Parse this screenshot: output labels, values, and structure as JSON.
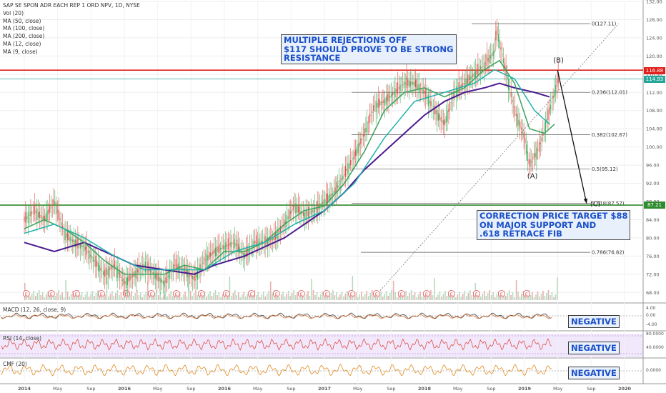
{
  "legend": {
    "title": "SAP SE SPON ADR EACH REP 1 ORD NPV, 1D, NYSE",
    "studies": [
      "Vol (20)",
      "MA (50, close)",
      "MA (100, close)",
      "MA (200, close)",
      "MA (12, close)",
      "MA (9, close)"
    ]
  },
  "annotations": {
    "resistance_note": [
      "MULTIPLE REJECTIONS OFF",
      "$117 SHOULD PROVE TO BE STRONG",
      "RESISTANCE"
    ],
    "target_note": [
      "CORRECTION PRICE TARGET $88",
      "ON MAJOR SUPPORT AND",
      ".618 RETRACE FIB"
    ],
    "wave_a": "(A)",
    "wave_b": "(B)",
    "wave_c": "(C)",
    "negative_label": "NEGATIVE"
  },
  "panes": {
    "macd_label": "MACD (12, 26, close, 9)",
    "rsi_label": "RSI (14, close)",
    "cmf_label": "CMF (20)"
  },
  "price_tags": {
    "resistance": "116.88",
    "last": "114.93",
    "support": "87.21"
  },
  "colors": {
    "resistance_line": "#e0201c",
    "support_line": "#2e8b2e",
    "last_price": "#26a69a",
    "ma_200": "#4b1a8f",
    "ma_50": "#3aa35a",
    "ma_100": "#20b2aa",
    "up_candle": "#3fae5c",
    "down_candle": "#e0504a",
    "note_text": "#1a4fc9"
  },
  "chart_data": {
    "type": "line",
    "title": "SAP SE SPON ADR EACH REP 1 ORD NPV, 1D, NYSE",
    "x_axis_labels": [
      "2014",
      "May",
      "Sep",
      "2016",
      "May",
      "Sep",
      "2016",
      "May",
      "Sep",
      "2017",
      "May",
      "Sep",
      "2018",
      "May",
      "Sep",
      "2019",
      "May",
      "Sep",
      "2020"
    ],
    "y_axis_labels": [
      "132.00",
      "128.00",
      "124.00",
      "120.00",
      "116.00",
      "112.00",
      "108.00",
      "104.00",
      "100.00",
      "96.00",
      "92.00",
      "88.00",
      "84.00",
      "80.00",
      "76.00",
      "72.00",
      "68.00"
    ],
    "ylim": [
      66,
      132
    ],
    "x_years": [
      2014,
      2020
    ],
    "horizontal_levels": [
      {
        "name": "resistance",
        "value": 116.88
      },
      {
        "name": "last price",
        "value": 114.93
      },
      {
        "name": "support",
        "value": 87.21
      }
    ],
    "fib_levels": [
      {
        "label": "0(127.11)",
        "value": 127.11
      },
      {
        "label": "0.236(112.01)",
        "value": 112.01
      },
      {
        "label": "0.382(102.67)",
        "value": 102.67
      },
      {
        "label": "0.5(95.12)",
        "value": 95.12
      },
      {
        "label": "0.618(87.57)",
        "value": 87.57
      },
      {
        "label": "0.786(76.82)",
        "value": 76.82
      }
    ],
    "price_series": {
      "name": "close",
      "points": [
        [
          2014.0,
          84
        ],
        [
          2014.1,
          86
        ],
        [
          2014.2,
          84
        ],
        [
          2014.3,
          88
        ],
        [
          2014.4,
          81
        ],
        [
          2014.5,
          79
        ],
        [
          2014.6,
          78
        ],
        [
          2014.7,
          75
        ],
        [
          2014.8,
          72
        ],
        [
          2014.9,
          74
        ],
        [
          2015.0,
          70
        ],
        [
          2015.1,
          72
        ],
        [
          2015.2,
          74
        ],
        [
          2015.3,
          72
        ],
        [
          2015.4,
          70
        ],
        [
          2015.5,
          74
        ],
        [
          2015.6,
          73
        ],
        [
          2015.7,
          71
        ],
        [
          2015.8,
          75
        ],
        [
          2015.9,
          77
        ],
        [
          2016.0,
          78
        ],
        [
          2016.1,
          79
        ],
        [
          2016.2,
          76
        ],
        [
          2016.3,
          79
        ],
        [
          2016.4,
          79
        ],
        [
          2016.5,
          80
        ],
        [
          2016.6,
          83
        ],
        [
          2016.7,
          87
        ],
        [
          2016.8,
          85
        ],
        [
          2016.9,
          86
        ],
        [
          2017.0,
          88
        ],
        [
          2017.1,
          90
        ],
        [
          2017.2,
          94
        ],
        [
          2017.3,
          98
        ],
        [
          2017.4,
          103
        ],
        [
          2017.5,
          109
        ],
        [
          2017.6,
          110
        ],
        [
          2017.7,
          112
        ],
        [
          2017.8,
          114
        ],
        [
          2017.9,
          114
        ],
        [
          2018.0,
          112
        ],
        [
          2018.1,
          108
        ],
        [
          2018.2,
          105
        ],
        [
          2018.3,
          112
        ],
        [
          2018.4,
          114
        ],
        [
          2018.5,
          116
        ],
        [
          2018.6,
          118
        ],
        [
          2018.7,
          121
        ],
        [
          2018.72,
          126
        ],
        [
          2018.8,
          118
        ],
        [
          2018.9,
          108
        ],
        [
          2019.0,
          102
        ],
        [
          2019.05,
          96
        ],
        [
          2019.15,
          100
        ],
        [
          2019.2,
          104
        ],
        [
          2019.3,
          112
        ],
        [
          2019.35,
          116
        ]
      ]
    },
    "series": [
      {
        "name": "MA (200, close)",
        "points": [
          [
            2014.0,
            79
          ],
          [
            2014.3,
            77
          ],
          [
            2014.6,
            79
          ],
          [
            2014.9,
            76
          ],
          [
            2015.1,
            74
          ],
          [
            2015.4,
            73
          ],
          [
            2015.7,
            72
          ],
          [
            2015.9,
            74
          ],
          [
            2016.2,
            76
          ],
          [
            2016.4,
            78
          ],
          [
            2016.6,
            80
          ],
          [
            2016.8,
            83
          ],
          [
            2017.0,
            86
          ],
          [
            2017.2,
            90
          ],
          [
            2017.4,
            95
          ],
          [
            2017.6,
            99
          ],
          [
            2017.8,
            103
          ],
          [
            2018.0,
            107
          ],
          [
            2018.2,
            110
          ],
          [
            2018.4,
            112
          ],
          [
            2018.6,
            113
          ],
          [
            2018.75,
            114
          ],
          [
            2018.9,
            113
          ],
          [
            2019.1,
            112
          ],
          [
            2019.25,
            111
          ]
        ]
      },
      {
        "name": "MA (50, close)",
        "points": [
          [
            2014.0,
            82
          ],
          [
            2014.2,
            84
          ],
          [
            2014.4,
            82
          ],
          [
            2014.6,
            79
          ],
          [
            2014.8,
            75
          ],
          [
            2015.0,
            72
          ],
          [
            2015.2,
            72
          ],
          [
            2015.4,
            72
          ],
          [
            2015.6,
            74
          ],
          [
            2015.8,
            73
          ],
          [
            2016.0,
            77
          ],
          [
            2016.2,
            77
          ],
          [
            2016.4,
            79
          ],
          [
            2016.6,
            83
          ],
          [
            2016.8,
            86
          ],
          [
            2017.0,
            87
          ],
          [
            2017.2,
            92
          ],
          [
            2017.4,
            99
          ],
          [
            2017.6,
            108
          ],
          [
            2017.8,
            112
          ],
          [
            2018.0,
            113
          ],
          [
            2018.2,
            111
          ],
          [
            2018.4,
            113
          ],
          [
            2018.6,
            117
          ],
          [
            2018.75,
            119
          ],
          [
            2018.9,
            114
          ],
          [
            2019.05,
            104
          ],
          [
            2019.2,
            103
          ],
          [
            2019.3,
            105
          ]
        ]
      },
      {
        "name": "MA (100, close)",
        "points": [
          [
            2014.0,
            81
          ],
          [
            2014.3,
            83
          ],
          [
            2014.6,
            80
          ],
          [
            2014.9,
            76
          ],
          [
            2015.2,
            73
          ],
          [
            2015.5,
            73
          ],
          [
            2015.8,
            73
          ],
          [
            2016.1,
            77
          ],
          [
            2016.4,
            79
          ],
          [
            2016.7,
            83
          ],
          [
            2017.0,
            86
          ],
          [
            2017.3,
            92
          ],
          [
            2017.6,
            102
          ],
          [
            2017.9,
            110
          ],
          [
            2018.2,
            112
          ],
          [
            2018.5,
            114
          ],
          [
            2018.7,
            117
          ],
          [
            2018.9,
            115
          ],
          [
            2019.1,
            108
          ],
          [
            2019.25,
            105
          ]
        ]
      }
    ],
    "projection_path": [
      [
        2019.33,
        116.9
      ],
      [
        2019.62,
        87.6
      ]
    ],
    "wave_points": [
      {
        "label": "(A)",
        "x": 2019.07,
        "y": 95
      },
      {
        "label": "(B)",
        "x": 2019.33,
        "y": 117
      },
      {
        "label": "(C)",
        "x": 2019.62,
        "y": 87.6
      }
    ],
    "indicator_status": [
      "NEGATIVE",
      "NEGATIVE",
      "NEGATIVE"
    ]
  }
}
